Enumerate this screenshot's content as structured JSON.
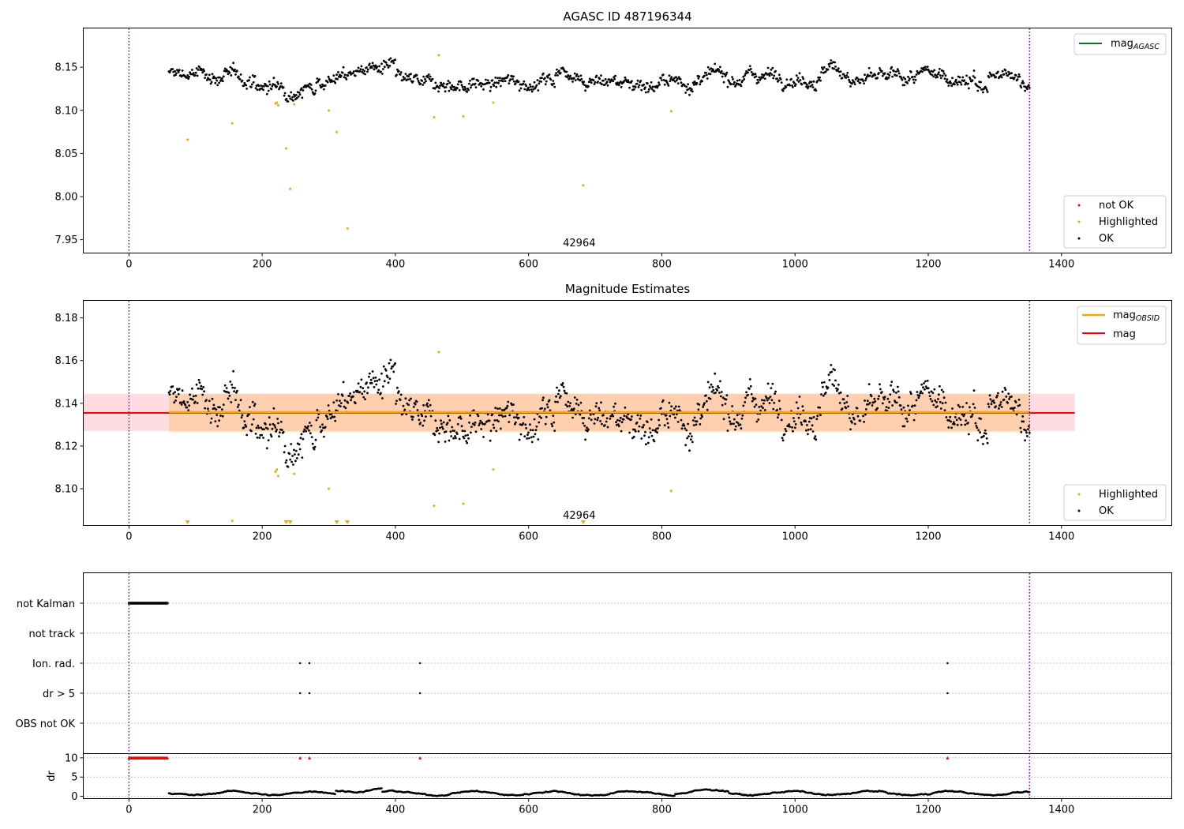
{
  "chart_data": [
    {
      "type": "scatter",
      "title": "AGASC ID 487196344",
      "xlim": [
        -68,
        1565
      ],
      "ylim": [
        7.935,
        8.195
      ],
      "yticks": [
        7.95,
        8.0,
        8.05,
        8.1,
        8.15
      ],
      "ytick_labels": [
        "7.95",
        "8.00",
        "8.05",
        "8.10",
        "8.15"
      ],
      "xticks": [
        0,
        200,
        400,
        600,
        800,
        1000,
        1200,
        1400
      ],
      "xtick_labels": [
        "0",
        "200",
        "400",
        "600",
        "800",
        "1000",
        "1200",
        "1400"
      ],
      "vlines": [
        0,
        1352
      ],
      "obsid_label": {
        "text": "42964",
        "x": 676
      },
      "series": [
        {
          "name": "mag",
          "subscript": "AGASC",
          "kind": "line",
          "color": "#008000",
          "y": null
        },
        {
          "name": "not OK",
          "kind": "points",
          "color": "#ff0000",
          "count": 0
        },
        {
          "name": "Highlighted",
          "kind": "points",
          "color": "#ffa500",
          "points": [
            [
              88,
              8.066
            ],
            [
              155,
              8.085
            ],
            [
              220,
              8.108
            ],
            [
              222,
              8.109
            ],
            [
              224,
              8.106
            ],
            [
              236,
              8.056
            ],
            [
              242,
              8.009
            ],
            [
              248,
              8.107
            ],
            [
              300,
              8.1
            ],
            [
              312,
              8.075
            ],
            [
              328,
              7.963
            ],
            [
              458,
              8.092
            ],
            [
              465,
              8.164
            ],
            [
              502,
              8.093
            ],
            [
              547,
              8.109
            ],
            [
              682,
              8.013
            ],
            [
              814,
              8.099
            ]
          ]
        },
        {
          "name": "OK",
          "kind": "points",
          "color": "#000000",
          "x_range": [
            60,
            1352
          ],
          "mean": 8.136
        }
      ],
      "legend_upper": "top-right",
      "legend_lower": "bottom-right"
    },
    {
      "type": "scatter",
      "title": "Magnitude Estimates",
      "xlim": [
        -68,
        1565
      ],
      "ylim": [
        8.083,
        8.188
      ],
      "yticks": [
        8.1,
        8.12,
        8.14,
        8.16,
        8.18
      ],
      "ytick_labels": [
        "8.10",
        "8.12",
        "8.14",
        "8.16",
        "8.18"
      ],
      "xticks": [
        0,
        200,
        400,
        600,
        800,
        1000,
        1200,
        1400
      ],
      "xtick_labels": [
        "0",
        "200",
        "400",
        "600",
        "800",
        "1000",
        "1200",
        "1400"
      ],
      "vlines": [
        0,
        1352
      ],
      "obsid_label": {
        "text": "42964",
        "x": 676
      },
      "mag_line": {
        "name": "mag",
        "y": 8.1355,
        "band": [
          8.127,
          8.1445
        ],
        "x_range": [
          -68,
          1420
        ],
        "color": "#ff0000"
      },
      "obsid_line": {
        "name": "mag",
        "subscript": "OBSID",
        "y": 8.1355,
        "band": [
          8.1265,
          8.1445
        ],
        "x_range": [
          60,
          1352
        ],
        "color": "#ffa500"
      },
      "highlighted": [
        [
          155,
          8.085
        ],
        [
          220,
          8.108
        ],
        [
          222,
          8.109
        ],
        [
          224,
          8.106
        ],
        [
          248,
          8.107
        ],
        [
          300,
          8.1
        ],
        [
          458,
          8.092
        ],
        [
          465,
          8.164
        ],
        [
          502,
          8.093
        ],
        [
          547,
          8.109
        ],
        [
          814,
          8.099
        ]
      ],
      "highlighted_below": [
        88,
        236,
        242,
        312,
        328,
        682
      ],
      "legend_upper_labels": [
        "mag",
        "mag"
      ],
      "legend_lower_labels": [
        "Highlighted",
        "OK"
      ]
    },
    {
      "type": "scatter",
      "title": "",
      "categories": [
        "not Kalman",
        "not track",
        "Ion. rad.",
        "dr > 5",
        "OBS not OK"
      ],
      "xlim": [
        -68,
        1565
      ],
      "xticks": [
        0,
        200,
        400,
        600,
        800,
        1000,
        1200,
        1400
      ],
      "xtick_labels": [
        "0",
        "200",
        "400",
        "600",
        "800",
        "1000",
        "1200",
        "1400"
      ],
      "vlines": [
        0,
        1352
      ],
      "flags": {
        "not Kalman": {
          "x_range": [
            0,
            58
          ]
        },
        "not track": {
          "x": []
        },
        "Ion. rad.": {
          "x": [
            257,
            271,
            437,
            1229
          ]
        },
        "dr > 5": {
          "x": [
            257,
            271,
            437,
            1229
          ]
        },
        "OBS not OK": {
          "x": []
        }
      }
    },
    {
      "type": "scatter",
      "title": "",
      "ylabel": "dr",
      "ylim": [
        -0.5,
        11
      ],
      "yticks": [
        0,
        5,
        10
      ],
      "ytick_labels": [
        "0",
        "5",
        "10"
      ],
      "xlim": [
        -68,
        1565
      ],
      "xticks": [
        0,
        200,
        400,
        600,
        800,
        1000,
        1200,
        1400
      ],
      "xtick_labels": [
        "0",
        "200",
        "400",
        "600",
        "800",
        "1000",
        "1200",
        "1400"
      ],
      "vlines": [
        0,
        1352
      ],
      "capped_markers": {
        "y": 10,
        "x_range": [
          0,
          58
        ],
        "extra_x": [
          257,
          271,
          437,
          1229
        ],
        "color": "#ff0000"
      },
      "dr_points": {
        "x_range": [
          60,
          1352
        ],
        "typical": [
          0.2,
          2.0
        ]
      }
    }
  ]
}
